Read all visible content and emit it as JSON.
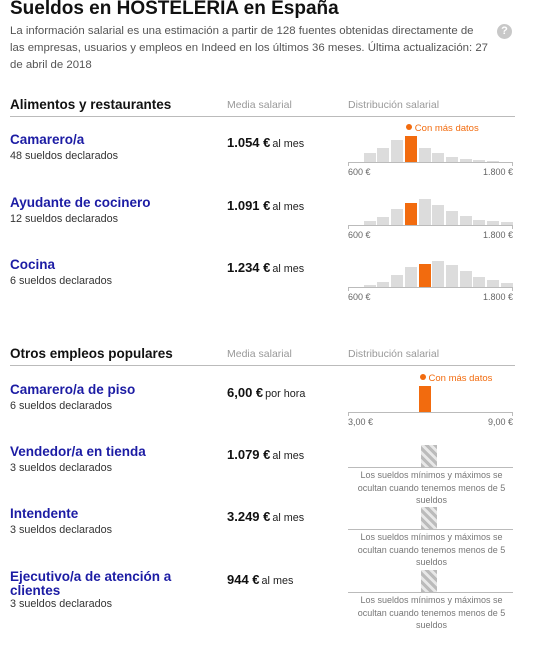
{
  "header": {
    "title": "Sueldos en HOSTELERÍA en España",
    "description": "La información salarial es una estimación a partir de 128 fuentes obtenidas directamente de las empresas, usuarios y empleos en Indeed en los últimos 36 meses. Última actualización: 27 de abril de 2018",
    "help_label": "?"
  },
  "columns": {
    "median": "Media salarial",
    "distribution": "Distribución salarial"
  },
  "sections": [
    {
      "title": "Alimentos y restaurantes",
      "jobs": [
        {
          "name": "Camarero/a",
          "count": "48 sueldos declarados",
          "salary": "1.054 €",
          "period": "al mes",
          "chart": {
            "marker": "Con más datos",
            "min_label": "600 €",
            "max_label": "1.800 €",
            "bars": [
              0,
              0.35,
              0.55,
              0.85,
              1.0,
              0.55,
              0.35,
              0.2,
              0.12,
              0.08,
              0.05,
              0
            ],
            "highlight": 4
          }
        },
        {
          "name": "Ayudante de cocinero",
          "count": "12 sueldos declarados",
          "salary": "1.091 €",
          "period": "al mes",
          "chart": {
            "max_label": "1.800 €",
            "min_label": "600 €",
            "bars": [
              0,
              0.15,
              0.3,
              0.6,
              0.85,
              1.0,
              0.75,
              0.55,
              0.35,
              0.2,
              0.15,
              0.1
            ],
            "highlight": 4
          }
        },
        {
          "name": "Cocina",
          "count": "6 sueldos declarados",
          "salary": "1.234 €",
          "period": "al mes",
          "chart": {
            "max_label": "1.800 €",
            "min_label": "600 €",
            "bars": [
              0,
              0.08,
              0.2,
              0.45,
              0.75,
              0.9,
              1.0,
              0.85,
              0.6,
              0.4,
              0.25,
              0.15
            ],
            "highlight": 5
          }
        }
      ]
    },
    {
      "title": "Otros empleos populares",
      "jobs": [
        {
          "name": "Camarero/a de piso",
          "count": "6 sueldos declarados",
          "salary": "6,00 €",
          "period": "por hora",
          "chart": {
            "marker": "Con más datos",
            "min_label": "3,00 €",
            "max_label": "9,00 €",
            "bars": [
              0,
              0,
              0,
              0,
              0,
              1.0,
              0,
              0,
              0,
              0,
              0,
              0
            ],
            "highlight": 5
          }
        },
        {
          "name": "Vendedor/a en tienda",
          "count": "3 sueldos declarados",
          "salary": "1.079 €",
          "period": "al mes",
          "note": "Los sueldos mínimos y máximos se ocultan cuando tenemos menos de 5 sueldos"
        },
        {
          "name": "Intendente",
          "count": "3 sueldos declarados",
          "salary": "3.249 €",
          "period": "al mes",
          "note": "Los sueldos mínimos y máximos se ocultan cuando tenemos menos de 5 sueldos"
        },
        {
          "name": "Ejecutivo/a de atención a clientes",
          "count": "3 sueldos declarados",
          "salary": "944 €",
          "period": "al mes",
          "note": "Los sueldos mínimos y máximos se ocultan cuando tenemos menos de 5 sueldos"
        }
      ]
    }
  ],
  "colors": {
    "accent": "#f26b0e",
    "link": "#1c1ca4",
    "bar": "#dcdcdc"
  }
}
